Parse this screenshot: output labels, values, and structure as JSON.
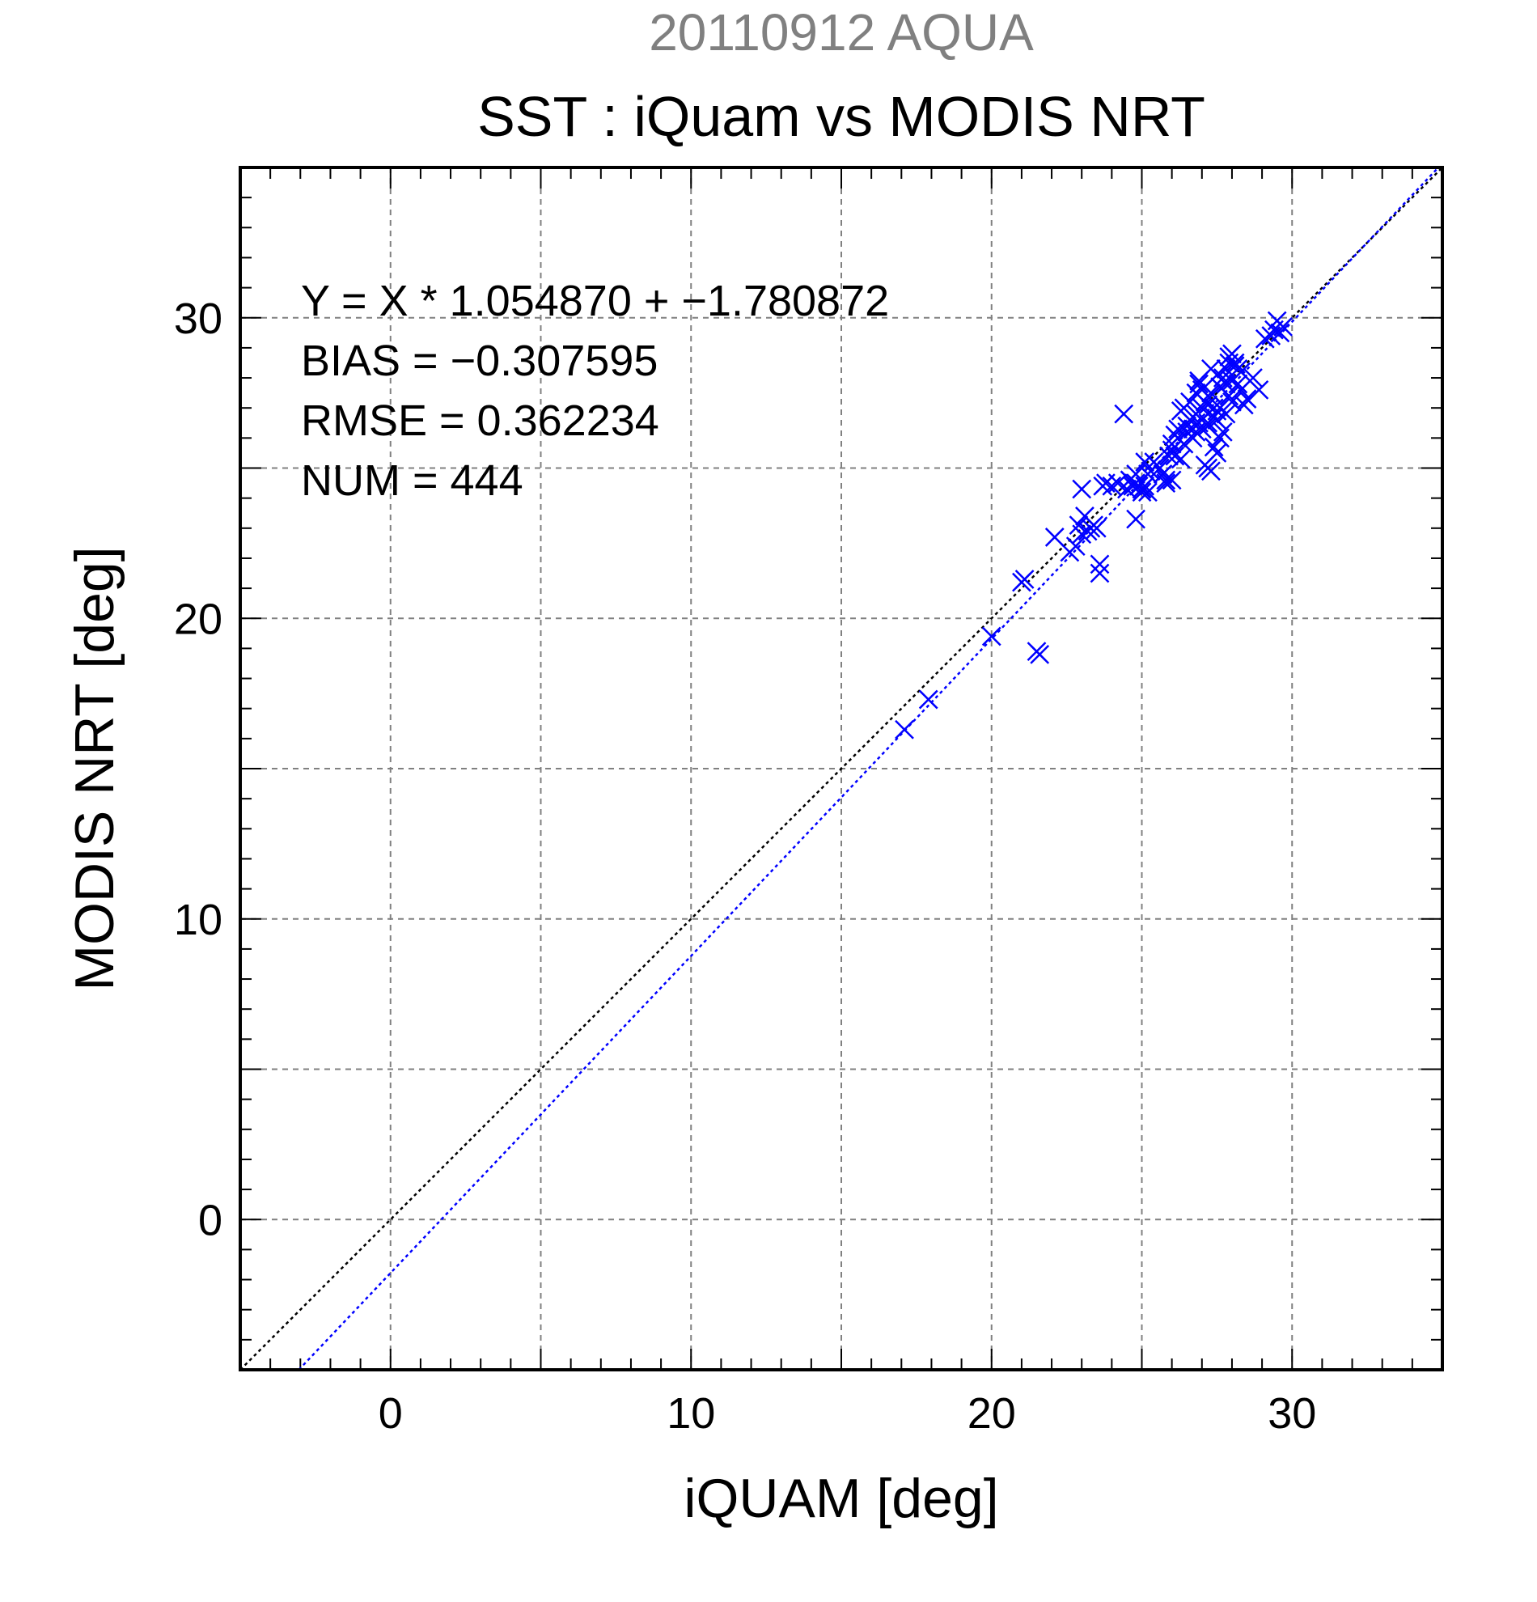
{
  "chart_data": {
    "type": "scatter",
    "supertitle": "20110912 AQUA",
    "title": "SST : iQuam vs MODIS NRT",
    "xlabel": "iQUAM [deg]",
    "ylabel": "MODIS NRT [deg]",
    "xlim": [
      -5,
      35
    ],
    "ylim": [
      -5,
      35
    ],
    "xticks": [
      0,
      10,
      20,
      30
    ],
    "yticks": [
      0,
      10,
      20,
      30
    ],
    "grid": true,
    "stats": [
      "Y = X * 1.054870 + −1.780872",
      "BIAS = −0.307595",
      "RMSE = 0.362234",
      "NUM = 444"
    ],
    "regression": {
      "slope": 1.05487,
      "intercept": -1.780872
    },
    "colors": {
      "supertitle": "#808080",
      "points": "#0000ff",
      "fit_line": "#0000ff",
      "identity_line": "#000000",
      "grid": "#808080"
    },
    "series": [
      {
        "marker": "x",
        "x": [
          17.1,
          17.9,
          20.0,
          21.0,
          21.1,
          21.5,
          21.6,
          22.1,
          22.6,
          22.8,
          22.9,
          23.0,
          23.0,
          23.1,
          23.2,
          23.3,
          23.4,
          23.5,
          23.6,
          23.6,
          23.7,
          23.8,
          24.0,
          24.2,
          24.4,
          24.5,
          24.6,
          24.7,
          24.8,
          24.8,
          24.9,
          25.0,
          25.0,
          25.1,
          25.1,
          25.2,
          25.2,
          25.3,
          25.4,
          25.5,
          25.6,
          25.7,
          25.8,
          25.9,
          26.0,
          26.1,
          26.2,
          26.3,
          26.4,
          26.5,
          26.6,
          26.7,
          26.8,
          26.9,
          27.0,
          27.1,
          27.2,
          27.3,
          27.4,
          27.5,
          27.6,
          27.7,
          27.8,
          27.9,
          28.0,
          28.1,
          28.2,
          28.3,
          28.4,
          28.5,
          28.7,
          28.9,
          26.2,
          26.5,
          26.8,
          27.0,
          27.2,
          27.5,
          27.8,
          28.0,
          26.0,
          26.3,
          26.7,
          27.1,
          27.4,
          27.7,
          28.1,
          28.3,
          27.2,
          27.3,
          27.5,
          27.6,
          26.6,
          26.9,
          27.3,
          27.9,
          29.1,
          29.3,
          29.4,
          29.5,
          29.6,
          29.7,
          26.1,
          26.4,
          26.8,
          27.0,
          27.4,
          27.8,
          28.2,
          27.6,
          27.9,
          28.0,
          26.9,
          27.2,
          27.5,
          25.8,
          26.0,
          24.6,
          24.8,
          25.0
        ],
        "y": [
          16.3,
          17.3,
          19.4,
          21.2,
          21.3,
          18.9,
          18.8,
          22.7,
          22.2,
          22.4,
          23.1,
          24.3,
          22.8,
          23.4,
          22.9,
          23.0,
          23.1,
          23.0,
          21.5,
          21.8,
          24.4,
          24.5,
          24.4,
          24.5,
          26.8,
          24.3,
          24.6,
          24.4,
          23.3,
          24.5,
          24.4,
          24.2,
          24.3,
          24.4,
          25.2,
          24.2,
          24.8,
          24.9,
          25.2,
          25.1,
          25.0,
          24.8,
          24.6,
          25.4,
          25.6,
          25.4,
          26.0,
          25.3,
          25.8,
          26.2,
          26.6,
          26.0,
          26.8,
          26.5,
          26.3,
          25.1,
          27.1,
          27.5,
          27.0,
          26.9,
          27.7,
          28.0,
          28.3,
          27.4,
          27.2,
          28.5,
          28.3,
          27.6,
          27.1,
          27.3,
          28.0,
          27.6,
          26.3,
          26.4,
          27.5,
          27.0,
          26.5,
          28.1,
          27.8,
          27.9,
          25.8,
          26.9,
          26.3,
          27.2,
          26.7,
          26.2,
          28.4,
          28.2,
          25.0,
          24.9,
          25.5,
          26.0,
          27.2,
          27.9,
          28.3,
          28.7,
          29.3,
          29.4,
          29.6,
          29.9,
          29.5,
          29.7,
          26.1,
          27.0,
          26.2,
          27.6,
          25.7,
          26.8,
          27.8,
          27.0,
          28.5,
          28.8,
          27.8,
          26.4,
          26.6,
          24.5,
          24.6,
          24.6,
          24.8,
          24.3
        ]
      }
    ]
  }
}
